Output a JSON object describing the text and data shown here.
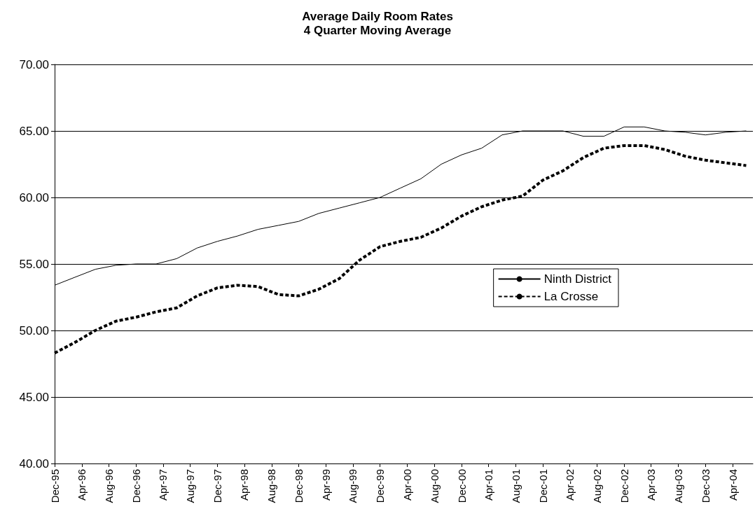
{
  "chart_data": {
    "type": "line",
    "title": "Average Daily Room Rates",
    "subtitle": "4 Quarter Moving Average",
    "x": [
      "1995-12",
      "1996-03",
      "1996-06",
      "1996-09",
      "1996-12",
      "1997-03",
      "1997-06",
      "1997-09",
      "1997-12",
      "1998-03",
      "1998-06",
      "1998-09",
      "1998-12",
      "1999-03",
      "1999-06",
      "1999-09",
      "1999-12",
      "2000-03",
      "2000-06",
      "2000-09",
      "2000-12",
      "2001-03",
      "2001-06",
      "2001-09",
      "2001-12",
      "2002-03",
      "2002-06",
      "2002-09",
      "2002-12",
      "2003-03",
      "2003-06",
      "2003-09",
      "2003-12",
      "2004-03",
      "2004-06"
    ],
    "series": [
      {
        "name": "Ninth District",
        "color": "#000000",
        "line_style": "solid",
        "values": [
          53.4,
          54.0,
          54.6,
          54.9,
          55.0,
          55.0,
          55.4,
          56.2,
          56.7,
          57.1,
          57.6,
          57.9,
          58.2,
          58.8,
          59.2,
          59.6,
          60.0,
          60.7,
          61.4,
          62.5,
          63.2,
          63.7,
          64.7,
          65.0,
          65.0,
          65.0,
          64.6,
          64.6,
          65.3,
          65.3,
          65.0,
          64.9,
          64.7,
          64.9,
          65.0
        ]
      },
      {
        "name": "La Crosse",
        "color": "#000000",
        "line_style": "dashed",
        "values": [
          48.3,
          49.1,
          50.0,
          50.7,
          51.0,
          51.4,
          51.7,
          52.6,
          53.2,
          53.4,
          53.3,
          52.7,
          52.6,
          53.1,
          53.9,
          55.3,
          56.3,
          56.7,
          57.0,
          57.7,
          58.6,
          59.3,
          59.8,
          60.1,
          61.3,
          62.0,
          63.0,
          63.7,
          63.9,
          63.9,
          63.6,
          63.1,
          62.8,
          62.6,
          62.4
        ]
      }
    ],
    "xlim": [
      "1995-12",
      "2004-07"
    ],
    "xticks": [
      {
        "value": "1995-12",
        "label": "Dec-95"
      },
      {
        "value": "1996-04",
        "label": "Apr-96"
      },
      {
        "value": "1996-08",
        "label": "Aug-96"
      },
      {
        "value": "1996-12",
        "label": "Dec-96"
      },
      {
        "value": "1997-04",
        "label": "Apr-97"
      },
      {
        "value": "1997-08",
        "label": "Aug-97"
      },
      {
        "value": "1997-12",
        "label": "Dec-97"
      },
      {
        "value": "1998-04",
        "label": "Apr-98"
      },
      {
        "value": "1998-08",
        "label": "Aug-98"
      },
      {
        "value": "1998-12",
        "label": "Dec-98"
      },
      {
        "value": "1999-04",
        "label": "Apr-99"
      },
      {
        "value": "1999-08",
        "label": "Aug-99"
      },
      {
        "value": "1999-12",
        "label": "Dec-99"
      },
      {
        "value": "2000-04",
        "label": "Apr-00"
      },
      {
        "value": "2000-08",
        "label": "Aug-00"
      },
      {
        "value": "2000-12",
        "label": "Dec-00"
      },
      {
        "value": "2001-04",
        "label": "Apr-01"
      },
      {
        "value": "2001-08",
        "label": "Aug-01"
      },
      {
        "value": "2001-12",
        "label": "Dec-01"
      },
      {
        "value": "2002-04",
        "label": "Apr-02"
      },
      {
        "value": "2002-08",
        "label": "Aug-02"
      },
      {
        "value": "2002-12",
        "label": "Dec-02"
      },
      {
        "value": "2003-04",
        "label": "Apr-03"
      },
      {
        "value": "2003-08",
        "label": "Aug-03"
      },
      {
        "value": "2003-12",
        "label": "Dec-03"
      },
      {
        "value": "2004-04",
        "label": "Apr-04"
      }
    ],
    "ylim": [
      40,
      70
    ],
    "yticks": [
      {
        "value": 40,
        "label": "40.00"
      },
      {
        "value": 45,
        "label": "45.00"
      },
      {
        "value": 50,
        "label": "50.00"
      },
      {
        "value": 55,
        "label": "55.00"
      },
      {
        "value": 60,
        "label": "60.00"
      },
      {
        "value": 65,
        "label": "65.00"
      },
      {
        "value": 70,
        "label": "70.00"
      }
    ],
    "grid": "y",
    "legend": "right",
    "marker": "none"
  }
}
